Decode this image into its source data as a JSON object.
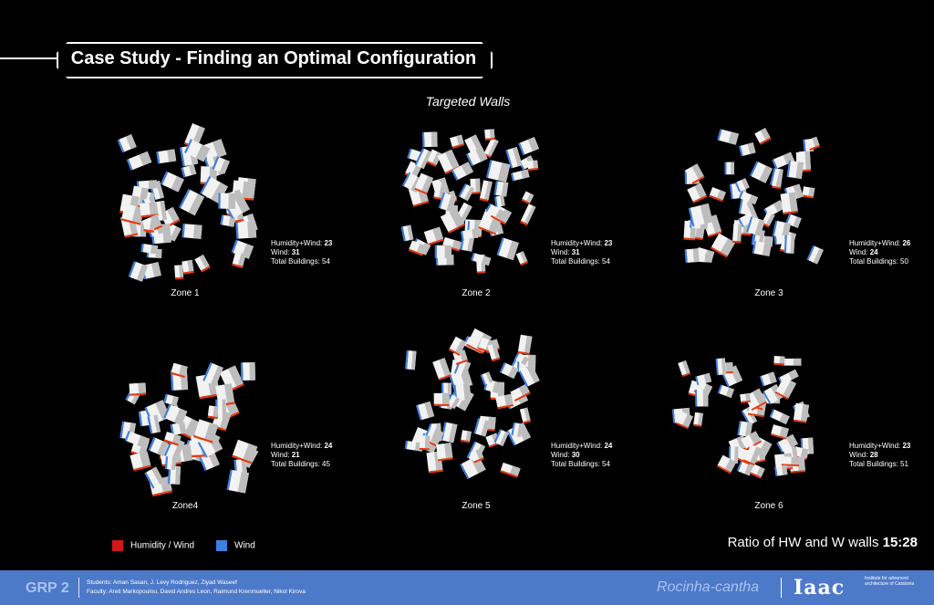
{
  "title": "Case Study - Finding an Optimal Configuration",
  "subtitle": "Targeted Walls",
  "zones": [
    {
      "label": "Zone 1",
      "hw_label": "Humidity+Wind:",
      "hw": "23",
      "w_label": "Wind:",
      "w": "31",
      "tb_label": "Total Buildings:",
      "tb": "54"
    },
    {
      "label": "Zone 2",
      "hw_label": "Humidity+Wind:",
      "hw": "23",
      "w_label": "Wind:",
      "w": "31",
      "tb_label": "Total Buildings:",
      "tb": "54"
    },
    {
      "label": "Zone 3",
      "hw_label": "Humidity+Wind:",
      "hw": "26",
      "w_label": "Wind:",
      "w": "24",
      "tb_label": "Total Buildings:",
      "tb": "50"
    },
    {
      "label": "Zone4",
      "hw_label": "Humidity+Wind:",
      "hw": "24",
      "w_label": "Wind:",
      "w": "21",
      "tb_label": "Total Buildings:",
      "tb": "45"
    },
    {
      "label": "Zone 5",
      "hw_label": "Humidity+Wind:",
      "hw": "24",
      "w_label": "Wind:",
      "w": "30",
      "tb_label": "Total Buildings:",
      "tb": "54"
    },
    {
      "label": "Zone 6",
      "hw_label": "Humidity+Wind:",
      "hw": "23",
      "w_label": "Wind:",
      "w": "28",
      "tb_label": "Total Buildings:",
      "tb": "51"
    }
  ],
  "legend": {
    "hw_label": "Humidity / Wind",
    "w_label": "Wind",
    "hw_color": "#e8380d",
    "w_color": "#3f7fe0"
  },
  "ratio": {
    "label": "Ratio of HW and W walls",
    "value": "15:28"
  },
  "footer": {
    "group": "GRP 2",
    "students": "Students: Aman Sasan, J. Levy Rodriguez, Ziyad Waseef",
    "faculty": "Faculty: Areti Markopoulou, David Andres Leon, Raimund Krenmueller, Nikol Kirova",
    "project": "Rocinha-cantha",
    "logo": "Iaac",
    "institute": "Institute for advanced architecture of Catalonia",
    "bg_color": "#4d79c9"
  }
}
